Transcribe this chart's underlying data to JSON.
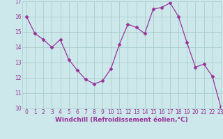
{
  "x": [
    0,
    1,
    2,
    3,
    4,
    5,
    6,
    7,
    8,
    9,
    10,
    11,
    12,
    13,
    14,
    15,
    16,
    17,
    18,
    19,
    20,
    21,
    22,
    23
  ],
  "y": [
    16.0,
    14.9,
    14.5,
    14.0,
    14.5,
    13.2,
    12.5,
    11.9,
    11.6,
    11.8,
    12.6,
    14.2,
    15.5,
    15.3,
    14.9,
    16.5,
    16.6,
    16.9,
    16.0,
    14.3,
    12.7,
    12.9,
    12.1,
    10.1
  ],
  "line_color": "#993399",
  "marker": "D",
  "marker_size": 2.5,
  "background_color": "#cce8ea",
  "grid_color": "#aacccc",
  "xlabel": "Windchill (Refroidissement éolien,°C)",
  "ylim": [
    10,
    17
  ],
  "xlim": [
    -0.5,
    23
  ],
  "yticks": [
    10,
    11,
    12,
    13,
    14,
    15,
    16,
    17
  ],
  "xticks": [
    0,
    1,
    2,
    3,
    4,
    5,
    6,
    7,
    8,
    9,
    10,
    11,
    12,
    13,
    14,
    15,
    16,
    17,
    18,
    19,
    20,
    21,
    22,
    23
  ],
  "tick_fontsize": 5.5,
  "xlabel_fontsize": 6.5,
  "label_color": "#993399"
}
